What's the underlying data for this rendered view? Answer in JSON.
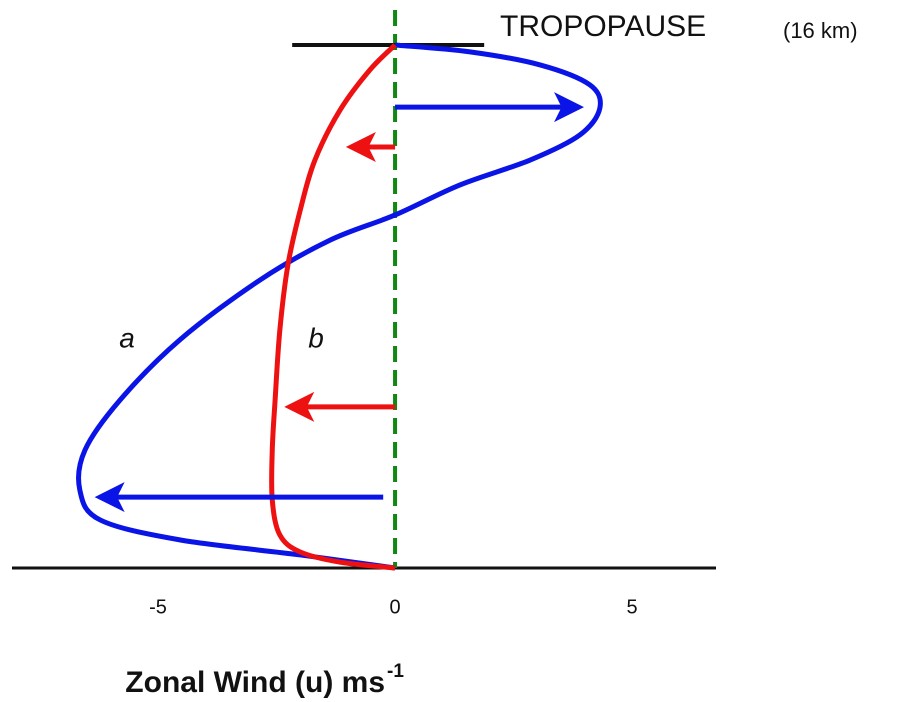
{
  "chart_data": {
    "type": "line",
    "title": "TROPOPAUSE",
    "subtitle": "(16 km)",
    "x_label": "Zonal Wind (u) ms",
    "x_label_superscript": "-1",
    "xlim": [
      -8.08,
      6.77
    ],
    "xticks": [
      -5,
      0,
      5
    ],
    "ylim": [
      0,
      16
    ],
    "series": [
      {
        "name": "a",
        "color": "#0a14e6",
        "x": [
          0,
          -2.0,
          -4.54,
          -6.22,
          -6.65,
          -6.54,
          -5.8,
          -4.54,
          -2.85,
          -1.37,
          0,
          1.37,
          2.85,
          3.9,
          4.32,
          4.11,
          3.06,
          1.58,
          0
        ],
        "values": [
          0,
          0.4,
          0.86,
          1.47,
          2.39,
          3.61,
          5.14,
          6.98,
          8.81,
          10.03,
          10.8,
          11.72,
          12.48,
          13.25,
          14.07,
          14.78,
          15.39,
          15.79,
          16
        ]
      },
      {
        "name": "b",
        "color": "#ee1111",
        "x": [
          0,
          -1.16,
          -2.0,
          -2.43,
          -2.59,
          -2.59,
          -2.53,
          -2.43,
          -2.26,
          -2.0,
          -1.69,
          -1.16,
          -0.53,
          0
        ],
        "values": [
          0,
          0.18,
          0.49,
          1.01,
          2.08,
          3.61,
          5.14,
          7.28,
          9.27,
          10.95,
          12.48,
          14.01,
          15.24,
          16
        ]
      }
    ],
    "arrows": [
      {
        "color": "#0a14e6",
        "x": [
          0,
          4.05
        ],
        "height": 14.1
      },
      {
        "color": "#0a14e6",
        "x": [
          -0.25,
          -6.4
        ],
        "height": 2.17
      },
      {
        "color": "#ee1111",
        "x": [
          0,
          -1.1
        ],
        "height": 12.88
      },
      {
        "color": "#ee1111",
        "x": [
          0,
          -2.4
        ],
        "height": 4.93
      }
    ],
    "tropopause_x": [
      -2.17,
      1.88
    ],
    "zero_line_color": "#118811"
  }
}
